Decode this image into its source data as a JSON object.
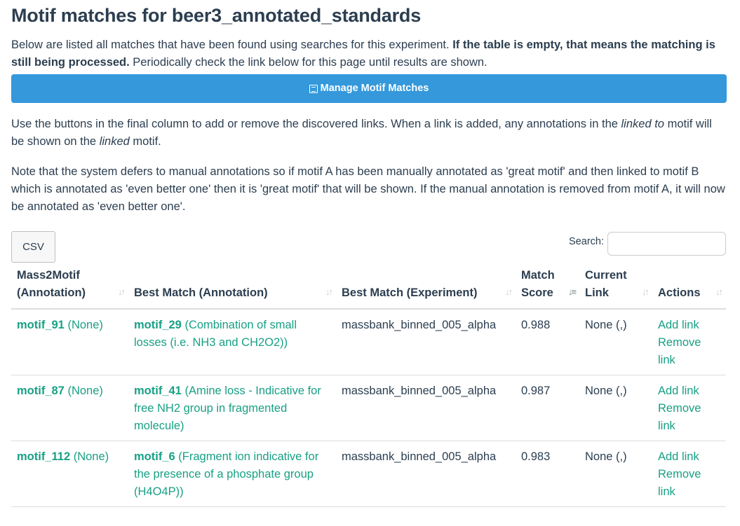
{
  "page_title": "Motif matches for beer3_annotated_standards",
  "intro": {
    "text1": "Below are listed all matches that have been found using searches for this experiment. ",
    "bold": "If the table is empty, that means the matching is still being processed.",
    "text2": " Periodically check the link below for this page until results are shown."
  },
  "manage_button": {
    "label": "Manage Motif Matches",
    "icon": "list-icon",
    "color": "#3498db"
  },
  "para1": {
    "text1": "Use the buttons in the final column to add or remove the discovered links. When a link is added, any annotations in the ",
    "em1": "linked to",
    "text2": " motif will be shown on the ",
    "em2": "linked",
    "text3": " motif."
  },
  "para2": "Note that the system defers to manual annotations so if motif A has been manually annotated as 'great motif' and then linked to motif B which is annotated as 'even better one' then it is 'great motif' that will be shown. If the manual annotation is removed from motif A, it will now be annotated as 'even better one'.",
  "controls": {
    "csv_label": "CSV",
    "search_label": "Search:",
    "search_value": ""
  },
  "table": {
    "headers": [
      {
        "line1": "Mass2Motif",
        "line2": "(Annotation)"
      },
      {
        "line1": "",
        "line2": "Best Match (Annotation)"
      },
      {
        "line1": "",
        "line2": "Best Match (Experiment)"
      },
      {
        "line1": "Match",
        "line2": "Score"
      },
      {
        "line1": "Current",
        "line2": "Link"
      },
      {
        "line1": "",
        "line2": "Actions"
      }
    ],
    "rows": [
      {
        "motif": "motif_91",
        "motif_ann": " (None)",
        "best": "motif_29",
        "best_ann": " (Combination of small losses (i.e. NH3 and CH2O2))",
        "experiment": "massbank_binned_005_alpha",
        "score": "0.988",
        "current": "None (,)",
        "add": "Add link",
        "remove": "Remove link"
      },
      {
        "motif": "motif_87",
        "motif_ann": " (None)",
        "best": "motif_41",
        "best_ann": " (Amine loss - Indicative for free NH2 group in fragmented molecule)",
        "experiment": "massbank_binned_005_alpha",
        "score": "0.987",
        "current": "None (,)",
        "add": "Add link",
        "remove": "Remove link"
      },
      {
        "motif": "motif_112",
        "motif_ann": " (None)",
        "best": "motif_6",
        "best_ann": " (Fragment ion indicative for the presence of a phosphate group (H4O4P))",
        "experiment": "massbank_binned_005_alpha",
        "score": "0.983",
        "current": "None (,)",
        "add": "Add link",
        "remove": "Remove link"
      }
    ]
  },
  "colors": {
    "text": "#2c3e50",
    "link": "#18a085",
    "primary": "#3498db"
  }
}
